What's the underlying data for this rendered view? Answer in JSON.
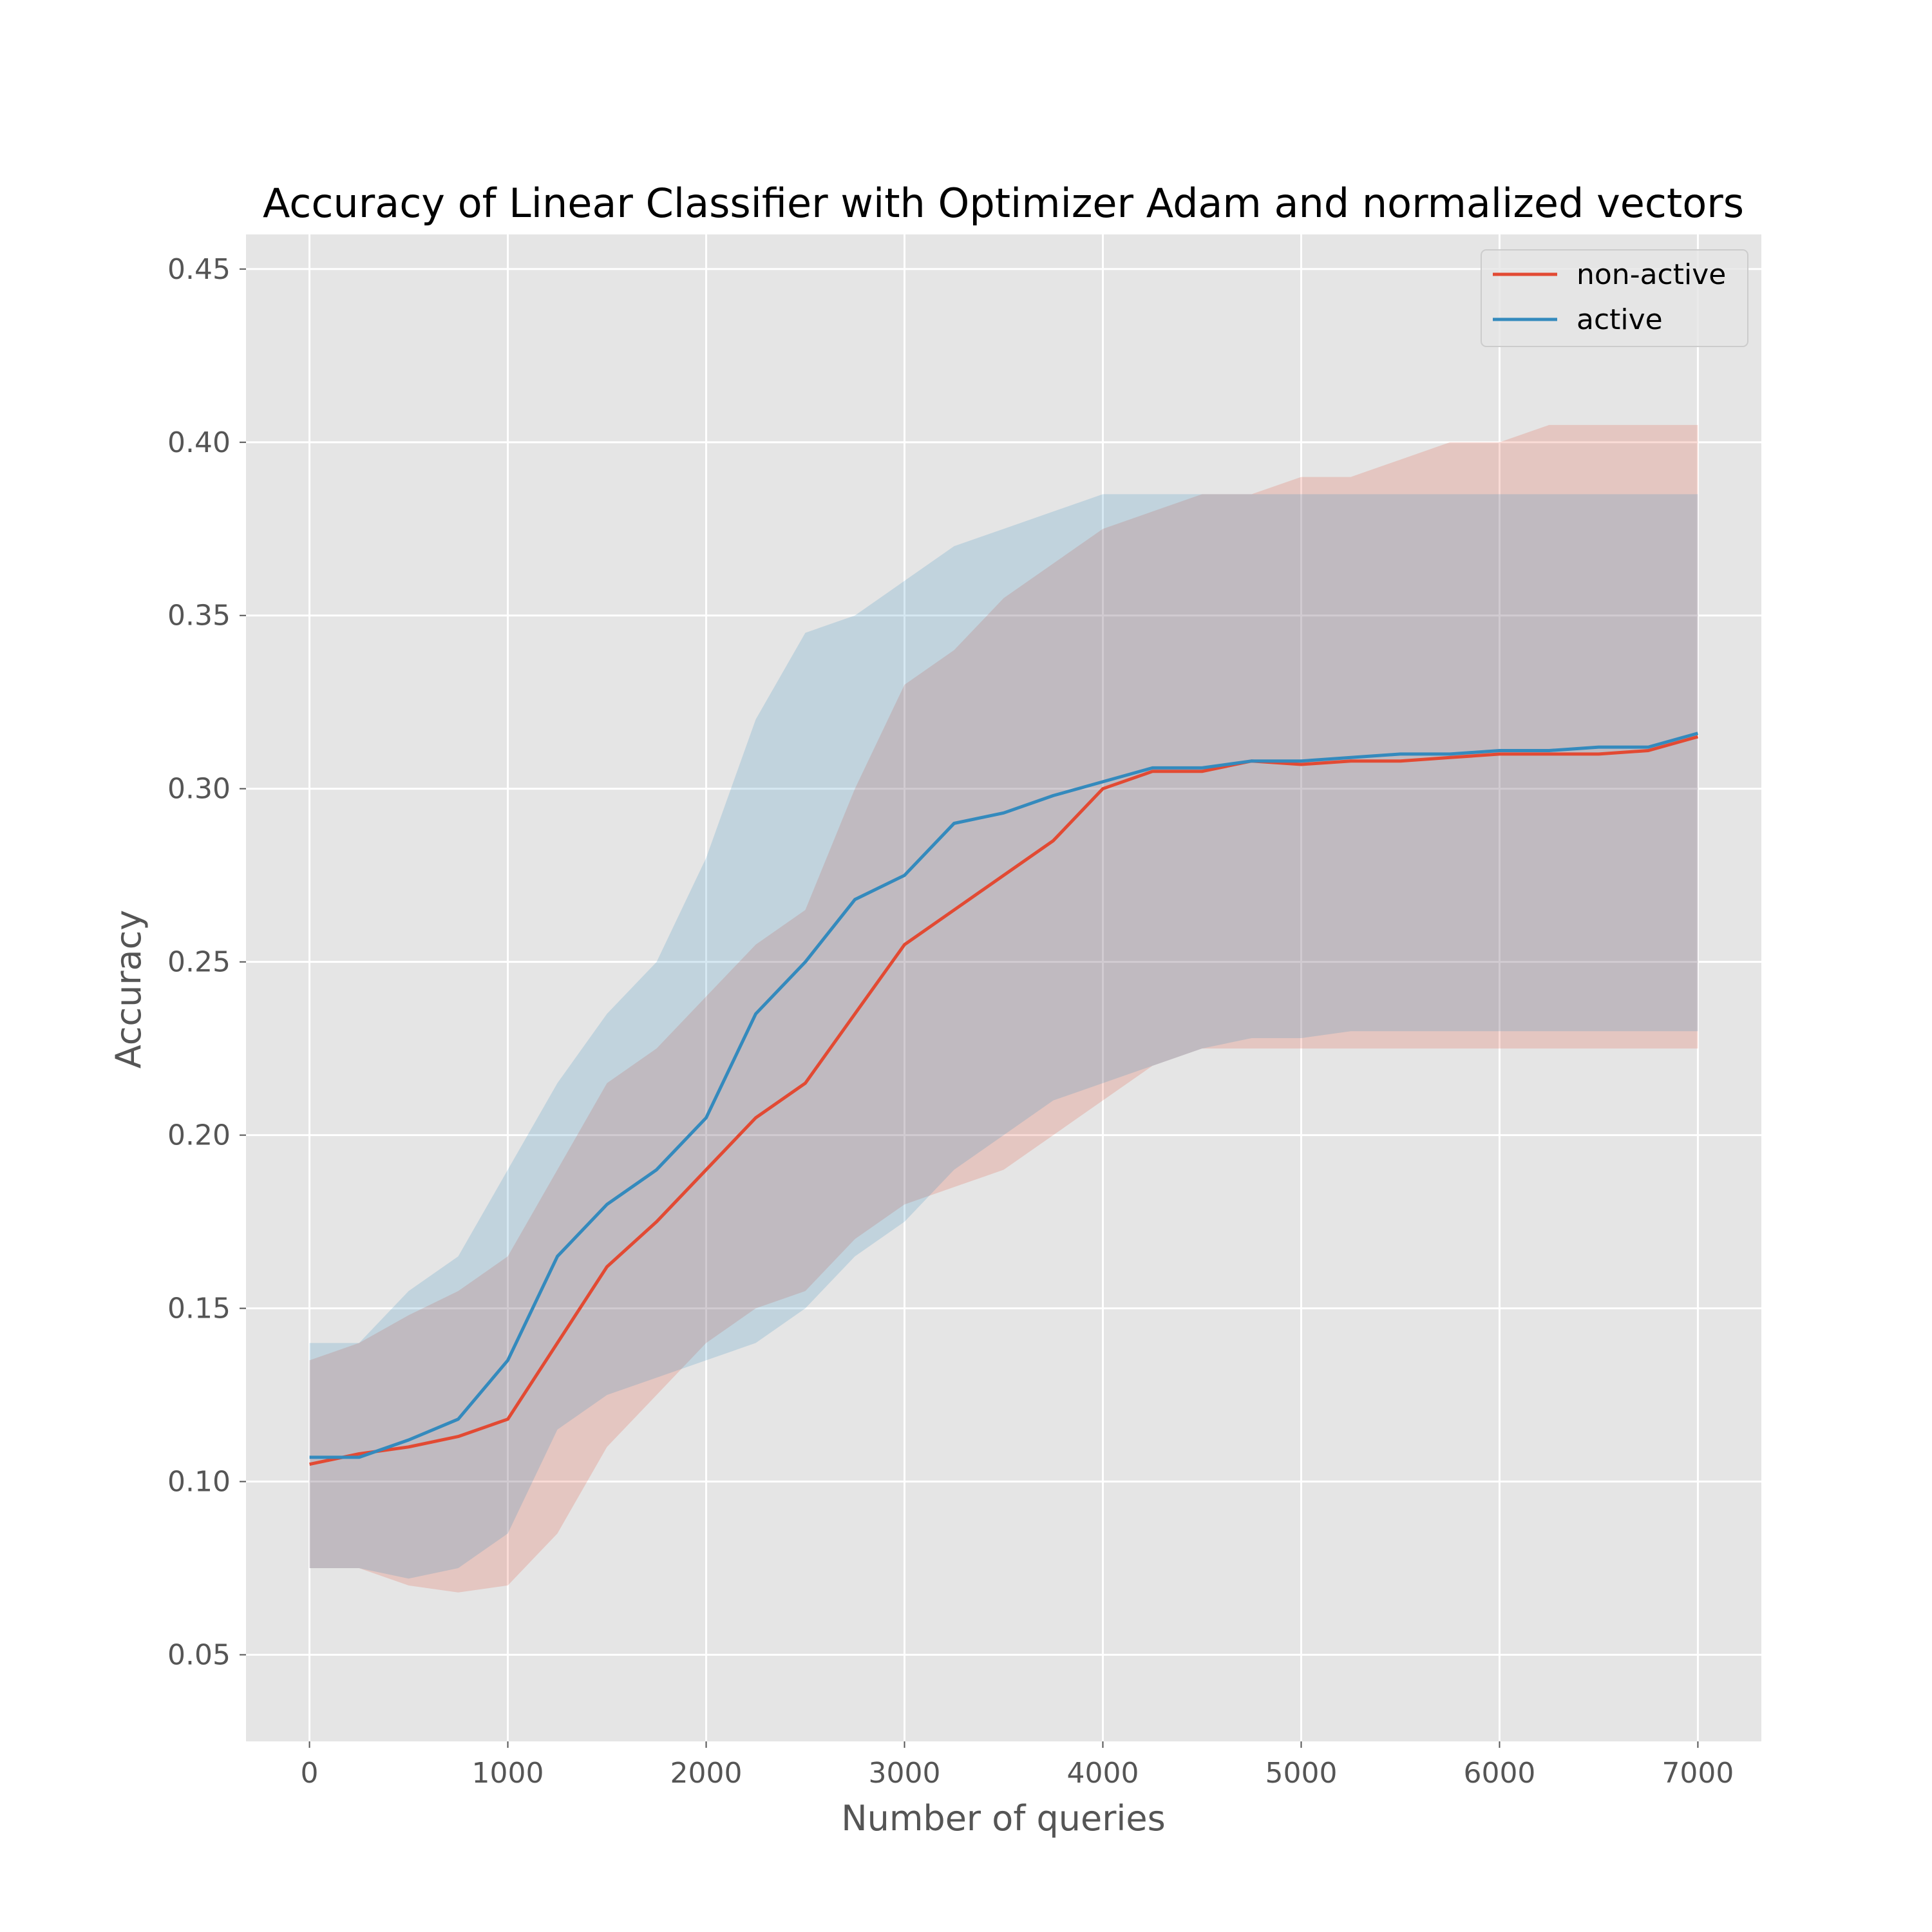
{
  "chart_data": {
    "type": "line",
    "title": "Accuracy of Linear Classifier with Optimizer Adam and normalized vectors",
    "xlabel": "Number of queries",
    "ylabel": "Accuracy",
    "xlim": [
      -320,
      7320
    ],
    "ylim": [
      0.025,
      0.46
    ],
    "xticks": [
      0,
      1000,
      2000,
      3000,
      4000,
      5000,
      6000,
      7000
    ],
    "xtick_labels": [
      "0",
      "1000",
      "2000",
      "3000",
      "4000",
      "5000",
      "6000",
      "7000"
    ],
    "yticks": [
      0.05,
      0.1,
      0.15,
      0.2,
      0.25,
      0.3,
      0.35,
      0.4,
      0.45
    ],
    "ytick_labels": [
      "0.05",
      "0.10",
      "0.15",
      "0.20",
      "0.25",
      "0.30",
      "0.35",
      "0.40",
      "0.45"
    ],
    "grid": true,
    "legend_position": "top-right",
    "x": [
      0,
      250,
      500,
      750,
      1000,
      1250,
      1500,
      1750,
      2000,
      2250,
      2500,
      2750,
      3000,
      3250,
      3500,
      3750,
      4000,
      4250,
      4500,
      4750,
      5000,
      5250,
      5500,
      5750,
      6000,
      6250,
      6500,
      6750,
      7000
    ],
    "series": [
      {
        "name": "non-active",
        "color": "#e24a33",
        "values": [
          0.105,
          0.108,
          0.11,
          0.113,
          0.118,
          0.14,
          0.162,
          0.175,
          0.19,
          0.205,
          0.215,
          0.235,
          0.255,
          0.265,
          0.275,
          0.285,
          0.3,
          0.305,
          0.305,
          0.308,
          0.307,
          0.308,
          0.308,
          0.309,
          0.31,
          0.31,
          0.31,
          0.311,
          0.315
        ],
        "band_lower": [
          0.075,
          0.075,
          0.07,
          0.068,
          0.07,
          0.085,
          0.11,
          0.125,
          0.14,
          0.15,
          0.155,
          0.17,
          0.18,
          0.185,
          0.19,
          0.2,
          0.21,
          0.22,
          0.225,
          0.225,
          0.225,
          0.225,
          0.225,
          0.225,
          0.225,
          0.225,
          0.225,
          0.225,
          0.225
        ],
        "band_upper": [
          0.135,
          0.14,
          0.148,
          0.155,
          0.165,
          0.19,
          0.215,
          0.225,
          0.24,
          0.255,
          0.265,
          0.3,
          0.33,
          0.34,
          0.355,
          0.365,
          0.375,
          0.38,
          0.385,
          0.385,
          0.39,
          0.39,
          0.395,
          0.4,
          0.4,
          0.405,
          0.405,
          0.405,
          0.405
        ]
      },
      {
        "name": "active",
        "color": "#348abd",
        "values": [
          0.107,
          0.107,
          0.112,
          0.118,
          0.135,
          0.165,
          0.18,
          0.19,
          0.205,
          0.235,
          0.25,
          0.268,
          0.275,
          0.29,
          0.293,
          0.298,
          0.302,
          0.306,
          0.306,
          0.308,
          0.308,
          0.309,
          0.31,
          0.31,
          0.311,
          0.311,
          0.312,
          0.312,
          0.316
        ],
        "band_lower": [
          0.075,
          0.075,
          0.072,
          0.075,
          0.085,
          0.115,
          0.125,
          0.13,
          0.135,
          0.14,
          0.15,
          0.165,
          0.175,
          0.19,
          0.2,
          0.21,
          0.215,
          0.22,
          0.225,
          0.228,
          0.228,
          0.23,
          0.23,
          0.23,
          0.23,
          0.23,
          0.23,
          0.23,
          0.23
        ],
        "band_upper": [
          0.14,
          0.14,
          0.155,
          0.165,
          0.19,
          0.215,
          0.235,
          0.25,
          0.28,
          0.32,
          0.345,
          0.35,
          0.36,
          0.37,
          0.375,
          0.38,
          0.385,
          0.385,
          0.385,
          0.385,
          0.385,
          0.385,
          0.385,
          0.385,
          0.385,
          0.385,
          0.385,
          0.385,
          0.385
        ]
      }
    ]
  },
  "colors": {
    "axes_background": "#e5e5e5",
    "grid": "#ffffff",
    "non_active": "#e24a33",
    "active": "#348abd"
  }
}
